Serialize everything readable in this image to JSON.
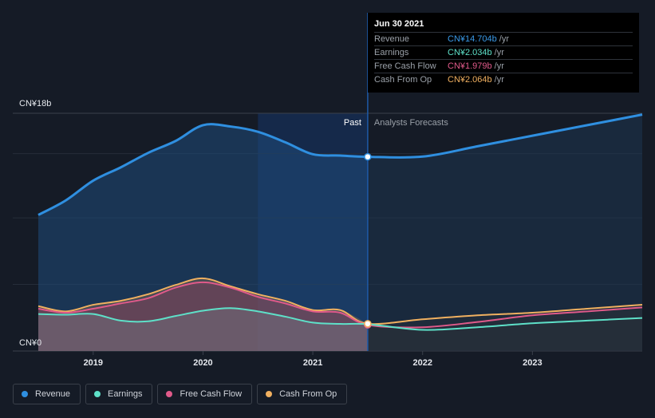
{
  "tooltip": {
    "date": "Jun 30 2021",
    "rows": [
      {
        "label": "Revenue",
        "value": "CN¥14.704b",
        "unit": "/yr",
        "color": "#3a9ae8"
      },
      {
        "label": "Earnings",
        "value": "CN¥2.034b",
        "unit": "/yr",
        "color": "#5ee0c8"
      },
      {
        "label": "Free Cash Flow",
        "value": "CN¥1.979b",
        "unit": "/yr",
        "color": "#e05a8a"
      },
      {
        "label": "Cash From Op",
        "value": "CN¥2.064b",
        "unit": "/yr",
        "color": "#f0b060"
      }
    ]
  },
  "legend": [
    {
      "label": "Revenue",
      "color": "#2f8fe0"
    },
    {
      "label": "Earnings",
      "color": "#5ee0c8"
    },
    {
      "label": "Free Cash Flow",
      "color": "#e05a8a"
    },
    {
      "label": "Cash From Op",
      "color": "#f0b060"
    }
  ],
  "chart_data": {
    "type": "line",
    "title": "",
    "xlabel": "",
    "ylabel": "",
    "ylim": [
      0,
      18
    ],
    "xlim": [
      2018.5,
      2024.0
    ],
    "y_tick_labels": [
      {
        "value": 18,
        "label": "CN¥18b"
      },
      {
        "value": 0,
        "label": "CN¥0"
      }
    ],
    "x_tick_labels": [
      2019,
      2020,
      2021,
      2022,
      2023
    ],
    "past_label": "Past",
    "forecast_label": "Analysts Forecasts",
    "past_end": 2021.5,
    "highlight_start": 2020.5,
    "series": [
      {
        "name": "Revenue",
        "color": "#2f8fe0",
        "points": [
          [
            2018.5,
            10.3
          ],
          [
            2018.75,
            11.4
          ],
          [
            2019.0,
            12.9
          ],
          [
            2019.25,
            13.9
          ],
          [
            2019.5,
            15.0
          ],
          [
            2019.75,
            15.9
          ],
          [
            2020.0,
            17.1
          ],
          [
            2020.25,
            17.0
          ],
          [
            2020.5,
            16.6
          ],
          [
            2020.75,
            15.8
          ],
          [
            2021.0,
            14.9
          ],
          [
            2021.25,
            14.8
          ],
          [
            2021.5,
            14.704
          ],
          [
            2022.0,
            14.72
          ],
          [
            2022.5,
            15.5
          ],
          [
            2023.0,
            16.3
          ],
          [
            2023.5,
            17.1
          ],
          [
            2024.0,
            17.9
          ]
        ]
      },
      {
        "name": "Earnings",
        "color": "#5ee0c8",
        "points": [
          [
            2018.5,
            2.8
          ],
          [
            2018.75,
            2.75
          ],
          [
            2019.0,
            2.8
          ],
          [
            2019.25,
            2.3
          ],
          [
            2019.5,
            2.25
          ],
          [
            2019.75,
            2.65
          ],
          [
            2020.0,
            3.05
          ],
          [
            2020.25,
            3.25
          ],
          [
            2020.5,
            3.0
          ],
          [
            2020.75,
            2.6
          ],
          [
            2021.0,
            2.15
          ],
          [
            2021.25,
            2.05
          ],
          [
            2021.5,
            2.034
          ],
          [
            2022.0,
            1.6
          ],
          [
            2022.5,
            1.8
          ],
          [
            2023.0,
            2.1
          ],
          [
            2023.5,
            2.3
          ],
          [
            2024.0,
            2.5
          ]
        ]
      },
      {
        "name": "Free Cash Flow",
        "color": "#e05a8a",
        "points": [
          [
            2018.5,
            3.2
          ],
          [
            2018.75,
            2.9
          ],
          [
            2019.0,
            3.2
          ],
          [
            2019.25,
            3.6
          ],
          [
            2019.5,
            4.0
          ],
          [
            2019.75,
            4.8
          ],
          [
            2020.0,
            5.2
          ],
          [
            2020.25,
            4.8
          ],
          [
            2020.5,
            4.1
          ],
          [
            2020.75,
            3.6
          ],
          [
            2021.0,
            3.0
          ],
          [
            2021.25,
            2.9
          ],
          [
            2021.5,
            1.979
          ],
          [
            2022.0,
            1.8
          ],
          [
            2022.5,
            2.2
          ],
          [
            2023.0,
            2.7
          ],
          [
            2023.5,
            3.0
          ],
          [
            2024.0,
            3.3
          ]
        ]
      },
      {
        "name": "Cash From Op",
        "color": "#f0b060",
        "points": [
          [
            2018.5,
            3.4
          ],
          [
            2018.75,
            3.0
          ],
          [
            2019.0,
            3.5
          ],
          [
            2019.25,
            3.8
          ],
          [
            2019.5,
            4.3
          ],
          [
            2019.75,
            5.0
          ],
          [
            2020.0,
            5.5
          ],
          [
            2020.25,
            4.9
          ],
          [
            2020.5,
            4.3
          ],
          [
            2020.75,
            3.8
          ],
          [
            2021.0,
            3.1
          ],
          [
            2021.25,
            3.1
          ],
          [
            2021.5,
            2.064
          ],
          [
            2022.0,
            2.4
          ],
          [
            2022.5,
            2.7
          ],
          [
            2023.0,
            2.9
          ],
          [
            2023.5,
            3.2
          ],
          [
            2024.0,
            3.5
          ]
        ]
      }
    ]
  }
}
